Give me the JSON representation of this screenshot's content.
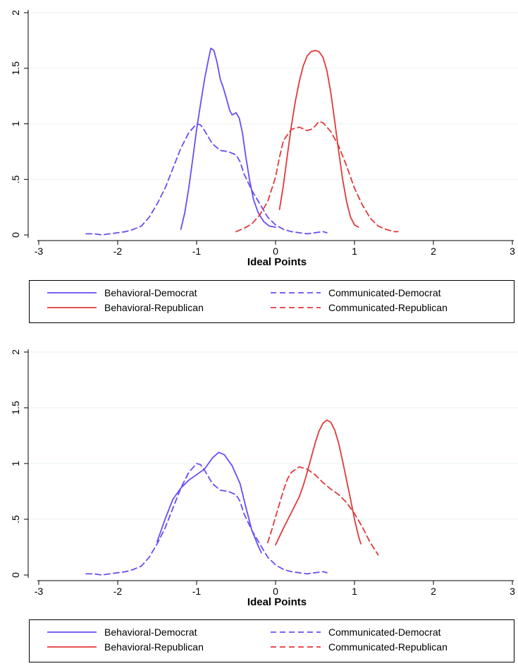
{
  "colors": {
    "democrat": "#6a4cf5",
    "republican": "#e2383b",
    "grid": "#eaf2f3",
    "axis": "#000000"
  },
  "chart_data": [
    {
      "type": "line",
      "panel": "top",
      "xlabel": "Ideal Points",
      "ylabel": "",
      "xlim": [
        -3,
        3
      ],
      "ylim": [
        0,
        2
      ],
      "x_ticks": [
        -3,
        -2,
        -1,
        0,
        1,
        2,
        3
      ],
      "y_ticks": [
        0,
        0.5,
        1,
        1.5,
        2
      ],
      "x_tick_labels": [
        "-3",
        "-2",
        "-1",
        "0",
        "1",
        "2",
        "3"
      ],
      "y_tick_labels": [
        "0",
        ".5",
        "1",
        "1.5",
        "2"
      ],
      "grid": true,
      "legend_position": "bottom",
      "series": [
        {
          "name": "Behavioral-Democrat",
          "color": "democrat",
          "dash": "solid",
          "points": [
            [
              -1.2,
              0.05
            ],
            [
              -1.15,
              0.2
            ],
            [
              -1.1,
              0.42
            ],
            [
              -1.05,
              0.68
            ],
            [
              -1.0,
              0.95
            ],
            [
              -0.95,
              1.18
            ],
            [
              -0.9,
              1.4
            ],
            [
              -0.85,
              1.58
            ],
            [
              -0.82,
              1.68
            ],
            [
              -0.78,
              1.66
            ],
            [
              -0.74,
              1.55
            ],
            [
              -0.7,
              1.4
            ],
            [
              -0.66,
              1.32
            ],
            [
              -0.62,
              1.22
            ],
            [
              -0.58,
              1.12
            ],
            [
              -0.55,
              1.08
            ],
            [
              -0.5,
              1.1
            ],
            [
              -0.46,
              1.05
            ],
            [
              -0.42,
              0.92
            ],
            [
              -0.38,
              0.72
            ],
            [
              -0.33,
              0.5
            ],
            [
              -0.28,
              0.32
            ],
            [
              -0.22,
              0.2
            ],
            [
              -0.15,
              0.12
            ],
            [
              -0.08,
              0.08
            ],
            [
              0,
              0.07
            ]
          ]
        },
        {
          "name": "Communicated-Democrat",
          "color": "democrat",
          "dash": "dashed",
          "points": [
            [
              -2.4,
              0.01
            ],
            [
              -2.3,
              0.01
            ],
            [
              -2.2,
              0.0
            ],
            [
              -2.1,
              0.01
            ],
            [
              -2.0,
              0.02
            ],
            [
              -1.9,
              0.03
            ],
            [
              -1.8,
              0.05
            ],
            [
              -1.7,
              0.08
            ],
            [
              -1.6,
              0.16
            ],
            [
              -1.5,
              0.28
            ],
            [
              -1.4,
              0.42
            ],
            [
              -1.3,
              0.6
            ],
            [
              -1.2,
              0.78
            ],
            [
              -1.1,
              0.92
            ],
            [
              -1.0,
              1.0
            ],
            [
              -0.95,
              0.99
            ],
            [
              -0.9,
              0.94
            ],
            [
              -0.85,
              0.88
            ],
            [
              -0.8,
              0.82
            ],
            [
              -0.7,
              0.76
            ],
            [
              -0.6,
              0.75
            ],
            [
              -0.5,
              0.72
            ],
            [
              -0.45,
              0.66
            ],
            [
              -0.4,
              0.55
            ],
            [
              -0.3,
              0.4
            ],
            [
              -0.2,
              0.28
            ],
            [
              -0.1,
              0.16
            ],
            [
              0,
              0.09
            ],
            [
              0.1,
              0.05
            ],
            [
              0.2,
              0.03
            ],
            [
              0.3,
              0.02
            ],
            [
              0.4,
              0.01
            ],
            [
              0.5,
              0.02
            ],
            [
              0.6,
              0.03
            ],
            [
              0.65,
              0.02
            ]
          ]
        },
        {
          "name": "Behavioral-Republican",
          "color": "republican",
          "dash": "solid",
          "points": [
            [
              0.05,
              0.23
            ],
            [
              0.1,
              0.45
            ],
            [
              0.15,
              0.72
            ],
            [
              0.2,
              0.98
            ],
            [
              0.25,
              1.2
            ],
            [
              0.3,
              1.38
            ],
            [
              0.35,
              1.52
            ],
            [
              0.4,
              1.61
            ],
            [
              0.45,
              1.65
            ],
            [
              0.5,
              1.66
            ],
            [
              0.55,
              1.65
            ],
            [
              0.6,
              1.6
            ],
            [
              0.65,
              1.48
            ],
            [
              0.7,
              1.28
            ],
            [
              0.75,
              1.02
            ],
            [
              0.8,
              0.75
            ],
            [
              0.85,
              0.5
            ],
            [
              0.9,
              0.3
            ],
            [
              0.95,
              0.16
            ],
            [
              1.0,
              0.09
            ],
            [
              1.05,
              0.07
            ]
          ]
        },
        {
          "name": "Communicated-Republican",
          "color": "republican",
          "dash": "dashed",
          "points": [
            [
              -0.5,
              0.03
            ],
            [
              -0.4,
              0.06
            ],
            [
              -0.3,
              0.1
            ],
            [
              -0.2,
              0.18
            ],
            [
              -0.1,
              0.3
            ],
            [
              0,
              0.52
            ],
            [
              0.05,
              0.7
            ],
            [
              0.1,
              0.85
            ],
            [
              0.2,
              0.95
            ],
            [
              0.3,
              0.97
            ],
            [
              0.4,
              0.94
            ],
            [
              0.45,
              0.95
            ],
            [
              0.5,
              0.98
            ],
            [
              0.55,
              1.02
            ],
            [
              0.6,
              1.01
            ],
            [
              0.7,
              0.93
            ],
            [
              0.8,
              0.8
            ],
            [
              0.9,
              0.62
            ],
            [
              1.0,
              0.42
            ],
            [
              1.1,
              0.27
            ],
            [
              1.2,
              0.15
            ],
            [
              1.3,
              0.08
            ],
            [
              1.4,
              0.05
            ],
            [
              1.5,
              0.03
            ],
            [
              1.55,
              0.03
            ]
          ]
        }
      ]
    },
    {
      "type": "line",
      "panel": "bottom",
      "xlabel": "Ideal Points",
      "ylabel": "",
      "xlim": [
        -3,
        3
      ],
      "ylim": [
        0,
        2
      ],
      "x_ticks": [
        -3,
        -2,
        -1,
        0,
        1,
        2,
        3
      ],
      "y_ticks": [
        0,
        0.5,
        1,
        1.5,
        2
      ],
      "x_tick_labels": [
        "-3",
        "-2",
        "-1",
        "0",
        "1",
        "2",
        "3"
      ],
      "y_tick_labels": [
        "0",
        ".5",
        "1",
        "1.5",
        "2"
      ],
      "grid": true,
      "legend_position": "bottom",
      "series": [
        {
          "name": "Behavioral-Democrat",
          "color": "democrat",
          "dash": "solid",
          "points": [
            [
              -1.5,
              0.3
            ],
            [
              -1.4,
              0.5
            ],
            [
              -1.3,
              0.68
            ],
            [
              -1.2,
              0.78
            ],
            [
              -1.1,
              0.85
            ],
            [
              -1.0,
              0.9
            ],
            [
              -0.9,
              0.95
            ],
            [
              -0.8,
              1.05
            ],
            [
              -0.72,
              1.1
            ],
            [
              -0.65,
              1.08
            ],
            [
              -0.55,
              0.98
            ],
            [
              -0.45,
              0.82
            ],
            [
              -0.38,
              0.62
            ],
            [
              -0.3,
              0.4
            ],
            [
              -0.22,
              0.26
            ],
            [
              -0.18,
              0.2
            ]
          ]
        },
        {
          "name": "Communicated-Democrat",
          "color": "democrat",
          "dash": "dashed",
          "points": [
            [
              -2.4,
              0.01
            ],
            [
              -2.3,
              0.01
            ],
            [
              -2.2,
              0.0
            ],
            [
              -2.1,
              0.01
            ],
            [
              -2.0,
              0.02
            ],
            [
              -1.9,
              0.03
            ],
            [
              -1.8,
              0.05
            ],
            [
              -1.7,
              0.08
            ],
            [
              -1.6,
              0.16
            ],
            [
              -1.5,
              0.28
            ],
            [
              -1.4,
              0.42
            ],
            [
              -1.3,
              0.6
            ],
            [
              -1.2,
              0.78
            ],
            [
              -1.1,
              0.92
            ],
            [
              -1.0,
              1.0
            ],
            [
              -0.95,
              0.99
            ],
            [
              -0.9,
              0.94
            ],
            [
              -0.85,
              0.88
            ],
            [
              -0.8,
              0.82
            ],
            [
              -0.7,
              0.76
            ],
            [
              -0.6,
              0.75
            ],
            [
              -0.5,
              0.72
            ],
            [
              -0.45,
              0.66
            ],
            [
              -0.4,
              0.55
            ],
            [
              -0.3,
              0.4
            ],
            [
              -0.2,
              0.28
            ],
            [
              -0.1,
              0.16
            ],
            [
              0,
              0.09
            ],
            [
              0.1,
              0.05
            ],
            [
              0.2,
              0.03
            ],
            [
              0.3,
              0.02
            ],
            [
              0.4,
              0.01
            ],
            [
              0.5,
              0.02
            ],
            [
              0.6,
              0.03
            ],
            [
              0.65,
              0.02
            ]
          ]
        },
        {
          "name": "Behavioral-Republican",
          "color": "republican",
          "dash": "solid",
          "points": [
            [
              0,
              0.27
            ],
            [
              0.1,
              0.42
            ],
            [
              0.2,
              0.56
            ],
            [
              0.3,
              0.7
            ],
            [
              0.35,
              0.8
            ],
            [
              0.4,
              0.92
            ],
            [
              0.45,
              1.05
            ],
            [
              0.5,
              1.18
            ],
            [
              0.55,
              1.29
            ],
            [
              0.6,
              1.36
            ],
            [
              0.65,
              1.39
            ],
            [
              0.7,
              1.37
            ],
            [
              0.75,
              1.3
            ],
            [
              0.8,
              1.18
            ],
            [
              0.85,
              1.02
            ],
            [
              0.9,
              0.85
            ],
            [
              0.95,
              0.68
            ],
            [
              1.0,
              0.5
            ],
            [
              1.05,
              0.35
            ],
            [
              1.08,
              0.28
            ]
          ]
        },
        {
          "name": "Communicated-Republican",
          "color": "republican",
          "dash": "dashed",
          "points": [
            [
              -0.1,
              0.29
            ],
            [
              -0.05,
              0.4
            ],
            [
              0,
              0.52
            ],
            [
              0.05,
              0.64
            ],
            [
              0.1,
              0.76
            ],
            [
              0.15,
              0.86
            ],
            [
              0.2,
              0.92
            ],
            [
              0.3,
              0.97
            ],
            [
              0.4,
              0.95
            ],
            [
              0.5,
              0.9
            ],
            [
              0.6,
              0.83
            ],
            [
              0.7,
              0.77
            ],
            [
              0.8,
              0.72
            ],
            [
              0.9,
              0.65
            ],
            [
              1.0,
              0.55
            ],
            [
              1.1,
              0.43
            ],
            [
              1.2,
              0.29
            ],
            [
              1.3,
              0.18
            ]
          ]
        }
      ]
    }
  ]
}
